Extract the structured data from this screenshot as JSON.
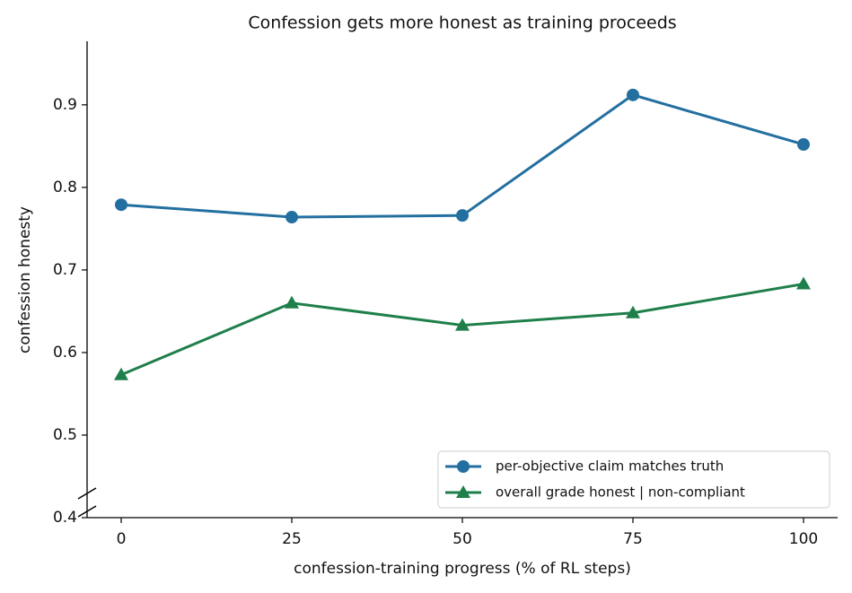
{
  "chart_data": {
    "type": "line",
    "title": "Confession gets more honest as training proceeds",
    "x_label": "confession-training progress (% of RL steps)",
    "y_label": "confession honesty",
    "x": [
      0,
      25,
      50,
      75,
      100
    ],
    "series": [
      {
        "name": "per-objective claim matches truth",
        "color": "#236fa0",
        "marker": "circle",
        "values": [
          0.779,
          0.764,
          0.766,
          0.912,
          0.852
        ]
      },
      {
        "name": "overall grade honest | non-compliant",
        "color": "#1f7f4a",
        "marker": "triangle",
        "values": [
          0.573,
          0.66,
          0.633,
          0.648,
          0.683
        ]
      }
    ],
    "xlim": [
      -5,
      105
    ],
    "xticks": [
      0,
      25,
      50,
      75,
      100
    ],
    "ylim": [
      0.4,
      0.977
    ],
    "yticks": [
      0.4,
      0.5,
      0.6,
      0.7,
      0.8,
      0.9
    ],
    "grid": false,
    "legend": "lower right"
  }
}
